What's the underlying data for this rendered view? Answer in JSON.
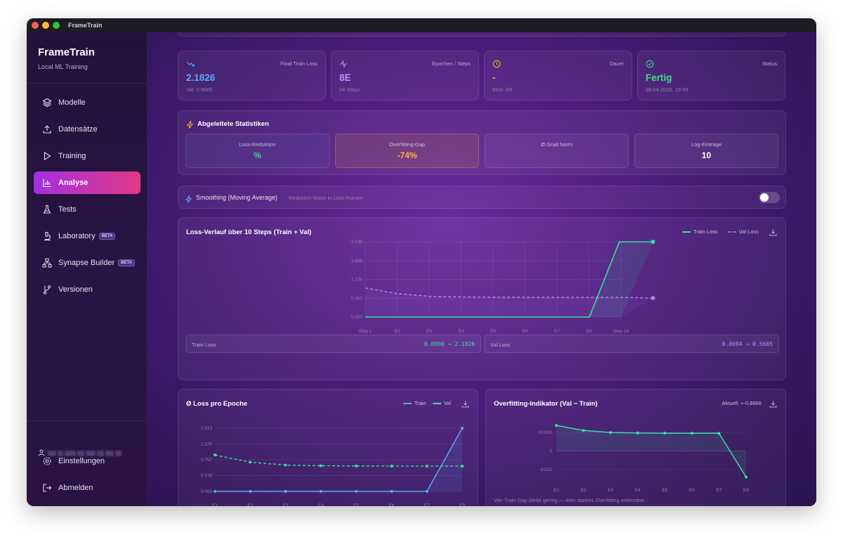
{
  "window": {
    "title": "FrameTrain"
  },
  "sidebar": {
    "brand": "FrameTrain",
    "subtitle": "Local ML Training",
    "items": [
      {
        "label": "Modelle",
        "icon": "layers-icon"
      },
      {
        "label": "Datensätze",
        "icon": "upload-icon"
      },
      {
        "label": "Training",
        "icon": "play-icon"
      },
      {
        "label": "Analyse",
        "icon": "bar-chart-icon",
        "active": true
      },
      {
        "label": "Tests",
        "icon": "flask-icon"
      },
      {
        "label": "Laboratory",
        "icon": "microscope-icon",
        "badge": "BETA"
      },
      {
        "label": "Synapse Builder",
        "icon": "network-icon",
        "badge": "BETA"
      },
      {
        "label": "Versionen",
        "icon": "git-branch-icon"
      }
    ],
    "settings": "Einstellungen",
    "logout": "Abmelden"
  },
  "stats": [
    {
      "label": "Final Train Loss",
      "value": "2.1826",
      "sub": "Val: 0.5685",
      "color": "#5aa8ff"
    },
    {
      "label": "Epochen / Steps",
      "value": "8E",
      "sub": "24 Steps",
      "color": "#c08cff"
    },
    {
      "label": "Dauer",
      "value": "-",
      "sub": "Best: E8",
      "color": "#f5b62a"
    },
    {
      "label": "Status",
      "value": "Fertig",
      "sub": "28.04.2026, 19:59",
      "color": "#3ddc84"
    }
  ],
  "derived": {
    "title": "Abgeleitete Statistiken",
    "items": [
      {
        "label": "Loss-Reduktion",
        "value": "%",
        "color": "#3ddc84"
      },
      {
        "label": "Overfitting-Gap",
        "value": "-74%",
        "color": "#f5b62a"
      },
      {
        "label": "Ø Grad Norm",
        "value": "",
        "color": "#ffffff"
      },
      {
        "label": "Log-Einträge",
        "value": "10",
        "color": "#ffffff"
      }
    ]
  },
  "smoothing": {
    "label": "Smoothing (Moving Average)",
    "hint": "Reduziert Noise in Loss-Kurven",
    "enabled": false
  },
  "loss_chart": {
    "title": "Loss-Verlauf über 10 Steps (Train + Val)",
    "legend_train": "Train Loss",
    "legend_val": "Val Loss",
    "train_summary_label": "Train Loss",
    "train_summary_value": "0.0000 → 2.1826",
    "val_summary_label": "Val Loss",
    "val_summary_value": "0.8694 → 0.5685"
  },
  "epoch_chart": {
    "title": "Ø Loss pro Epoche",
    "legend_train": "Train",
    "legend_val": "Val"
  },
  "overfit_chart": {
    "title": "Overfitting-Indikator (Val − Train)",
    "current_label": "Aktuell: +-0.8866",
    "note": "Val−Train Gap bleibt gering — kein starkes Overfitting erkennbar."
  },
  "chart_data": [
    {
      "type": "line",
      "title": "Loss-Verlauf über 10 Steps (Train + Val)",
      "categories": [
        "Step 1",
        "E2",
        "E3",
        "E4",
        "E5",
        "E6",
        "E7",
        "E8",
        "Step 24"
      ],
      "ylim": [
        0,
        2.248
      ],
      "yticks": [
        "0.000",
        "0.562",
        "1.124",
        "1.686",
        "2.248"
      ],
      "series": [
        {
          "name": "Train Loss",
          "color": "#34e0a1",
          "x": [
            0,
            7.01,
            7.95,
            9
          ],
          "y": [
            0,
            0,
            2.248,
            2.248
          ]
        },
        {
          "name": "Val Loss",
          "color": "#b880ff",
          "x": [
            0,
            1,
            2,
            3,
            4,
            5,
            6,
            7,
            8,
            9
          ],
          "y": [
            0.8694,
            0.7,
            0.62,
            0.6,
            0.595,
            0.592,
            0.59,
            0.589,
            0.588,
            0.5685
          ]
        }
      ]
    },
    {
      "type": "line",
      "title": "Ø Loss pro Epoche",
      "categories": [
        "E1",
        "E2",
        "E3",
        "E4",
        "E5",
        "E6",
        "E7",
        "E8"
      ],
      "ylim": [
        0,
        1.513
      ],
      "yticks": [
        "0.000",
        "0.378",
        "0.757",
        "1.135",
        "1.513"
      ],
      "series": [
        {
          "name": "Train",
          "color": "#5aa8ff",
          "values": [
            0,
            0,
            0,
            0,
            0,
            0,
            0,
            1.513
          ]
        },
        {
          "name": "Val",
          "color": "#34e0a1",
          "values": [
            0.869,
            0.7,
            0.628,
            0.614,
            0.608,
            0.605,
            0.604,
            0.604
          ]
        }
      ]
    },
    {
      "type": "line",
      "title": "Overfitting-Indikator (Val − Train)",
      "categories": [
        "E1",
        "E2",
        "E3",
        "E4",
        "E5",
        "E6",
        "E7",
        "E8"
      ],
      "ylim": [
        -0.9,
        0.9
      ],
      "yticks": [
        "-0.632",
        "0",
        "+0.632"
      ],
      "series": [
        {
          "name": "Val − Train",
          "color": "#34e0a1",
          "values": [
            0.869,
            0.7,
            0.628,
            0.614,
            0.608,
            0.605,
            0.604,
            -0.887
          ]
        }
      ]
    }
  ]
}
